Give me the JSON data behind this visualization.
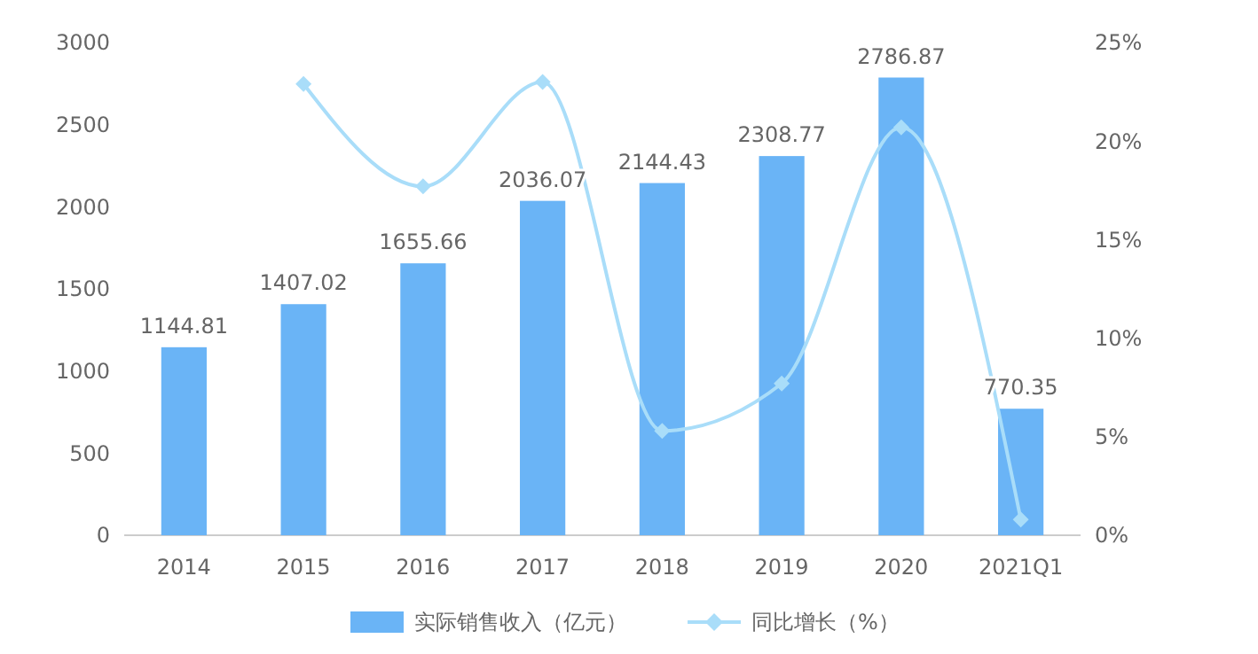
{
  "chart_data": {
    "type": "bar",
    "categories": [
      "2014",
      "2015",
      "2016",
      "2017",
      "2018",
      "2019",
      "2020",
      "2021Q1"
    ],
    "series": [
      {
        "name": "实际销售收入（亿元）",
        "color": "#6ab4f6",
        "values": [
          1144.81,
          1407.02,
          1655.66,
          2036.07,
          2144.43,
          2308.77,
          2786.87,
          770.35
        ],
        "value_labels": [
          "1144.81",
          "1407.02",
          "1655.66",
          "2036.07",
          "2144.43",
          "2308.77",
          "2786.87",
          "770.35"
        ]
      },
      {
        "type": "line",
        "name": "同比增长（%）",
        "color": "#a9ddf9",
        "axis": "y2",
        "marker": "diamond",
        "values": [
          null,
          22.9,
          17.7,
          23.0,
          5.3,
          7.7,
          20.7,
          0.8
        ]
      }
    ],
    "ylim": [
      0,
      3000
    ],
    "yticks": [
      0,
      500,
      1000,
      1500,
      2000,
      2500,
      3000
    ],
    "y2lim": [
      0,
      25
    ],
    "y2ticks": [
      {
        "value": 0,
        "label": "0%"
      },
      {
        "value": 5,
        "label": "5%"
      },
      {
        "value": 10,
        "label": "10%"
      },
      {
        "value": 15,
        "label": "15%"
      },
      {
        "value": 20,
        "label": "20%"
      },
      {
        "value": 25,
        "label": "25%"
      }
    ],
    "grid": false,
    "legend": "bottom"
  }
}
